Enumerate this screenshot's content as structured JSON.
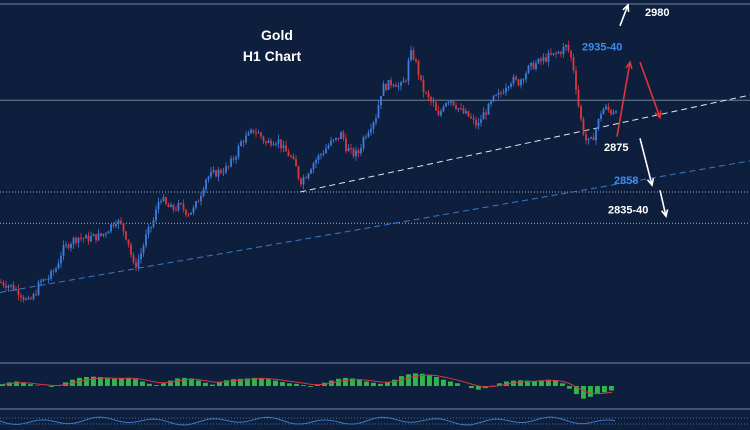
{
  "chart_data": {
    "type": "candlestick",
    "title_line1": "Gold",
    "title_line2": "H1  Chart",
    "colors": {
      "background": "#0d1f3c",
      "bull": "#3b7de0",
      "bear": "#d9383f",
      "support_level_line": "#c8d3e6",
      "trendline_white": "#dfe6f0",
      "trendline_blue": "#3a79c9",
      "arrow_up_red": "#e0343a",
      "arrow_white": "#ffffff",
      "macd_hist": "#2fb54b",
      "macd_signal": "#d9383f",
      "osc_line": "#3a79c9"
    },
    "y_range": [
      2785,
      2990
    ],
    "price_path": [
      [
        0,
        2830
      ],
      [
        10,
        2828
      ],
      [
        20,
        2824
      ],
      [
        28,
        2818
      ],
      [
        34,
        2822
      ],
      [
        40,
        2830
      ],
      [
        48,
        2832
      ],
      [
        56,
        2838
      ],
      [
        62,
        2848
      ],
      [
        70,
        2853
      ],
      [
        78,
        2856
      ],
      [
        86,
        2855
      ],
      [
        94,
        2856
      ],
      [
        102,
        2857
      ],
      [
        110,
        2862
      ],
      [
        116,
        2866
      ],
      [
        122,
        2862
      ],
      [
        128,
        2854
      ],
      [
        134,
        2838
      ],
      [
        140,
        2845
      ],
      [
        146,
        2856
      ],
      [
        154,
        2866
      ],
      [
        160,
        2880
      ],
      [
        166,
        2874
      ],
      [
        172,
        2872
      ],
      [
        180,
        2874
      ],
      [
        188,
        2870
      ],
      [
        194,
        2872
      ],
      [
        200,
        2880
      ],
      [
        206,
        2890
      ],
      [
        212,
        2892
      ],
      [
        220,
        2894
      ],
      [
        228,
        2896
      ],
      [
        236,
        2904
      ],
      [
        242,
        2912
      ],
      [
        248,
        2914
      ],
      [
        254,
        2918
      ],
      [
        260,
        2915
      ],
      [
        266,
        2910
      ],
      [
        272,
        2912
      ],
      [
        278,
        2912
      ],
      [
        284,
        2906
      ],
      [
        290,
        2903
      ],
      [
        296,
        2896
      ],
      [
        300,
        2888
      ],
      [
        306,
        2892
      ],
      [
        312,
        2898
      ],
      [
        318,
        2902
      ],
      [
        324,
        2906
      ],
      [
        330,
        2910
      ],
      [
        336,
        2912
      ],
      [
        342,
        2916
      ],
      [
        346,
        2908
      ],
      [
        352,
        2904
      ],
      [
        358,
        2904
      ],
      [
        364,
        2914
      ],
      [
        370,
        2920
      ],
      [
        376,
        2926
      ],
      [
        382,
        2942
      ],
      [
        388,
        2944
      ],
      [
        394,
        2946
      ],
      [
        400,
        2942
      ],
      [
        406,
        2948
      ],
      [
        410,
        2962
      ],
      [
        414,
        2960
      ],
      [
        418,
        2952
      ],
      [
        422,
        2942
      ],
      [
        428,
        2936
      ],
      [
        434,
        2932
      ],
      [
        438,
        2924
      ],
      [
        444,
        2934
      ],
      [
        450,
        2936
      ],
      [
        456,
        2932
      ],
      [
        462,
        2928
      ],
      [
        468,
        2926
      ],
      [
        474,
        2922
      ],
      [
        478,
        2920
      ],
      [
        482,
        2926
      ],
      [
        488,
        2930
      ],
      [
        494,
        2936
      ],
      [
        500,
        2938
      ],
      [
        506,
        2944
      ],
      [
        512,
        2947
      ],
      [
        518,
        2945
      ],
      [
        524,
        2950
      ],
      [
        530,
        2954
      ],
      [
        536,
        2956
      ],
      [
        542,
        2958
      ],
      [
        548,
        2960
      ],
      [
        554,
        2961
      ],
      [
        560,
        2963
      ],
      [
        566,
        2966
      ],
      [
        570,
        2962
      ],
      [
        574,
        2952
      ],
      [
        578,
        2934
      ],
      [
        582,
        2920
      ],
      [
        586,
        2912
      ],
      [
        590,
        2910
      ],
      [
        594,
        2915
      ],
      [
        598,
        2922
      ],
      [
        602,
        2930
      ],
      [
        606,
        2930
      ],
      [
        612,
        2928
      ],
      [
        616,
        2931
      ]
    ],
    "levels": [
      {
        "name": "resistance",
        "y": 2935
      },
      {
        "name": "support_2858",
        "y": 2882
      },
      {
        "name": "support_2835",
        "y": 2864
      }
    ],
    "trendlines": [
      {
        "name": "white_dashed",
        "from": [
          300,
          2882
        ],
        "to": [
          750,
          2938
        ]
      },
      {
        "name": "blue_dashed",
        "from": [
          0,
          2824
        ],
        "to": [
          750,
          2900
        ]
      }
    ],
    "labels": [
      {
        "name": "label-2980",
        "text": "2980",
        "x": 645,
        "y": 2986,
        "color": "white"
      },
      {
        "name": "label-2935-40",
        "text": "2935-40",
        "x": 582,
        "y": 2966,
        "color": "blue"
      },
      {
        "name": "label-2875",
        "text": "2875",
        "x": 604,
        "y": 2908,
        "color": "white"
      },
      {
        "name": "label-2858",
        "text": "2858",
        "x": 614,
        "y": 2889,
        "color": "blue"
      },
      {
        "name": "label-2835-40",
        "text": "2835-40",
        "x": 608,
        "y": 2872,
        "color": "white"
      }
    ],
    "arrows": [
      {
        "name": "arrow-up-red-1",
        "from": [
          617,
          2914
        ],
        "to": [
          630,
          2957
        ],
        "color": "red"
      },
      {
        "name": "arrow-down-red",
        "from": [
          640,
          2957
        ],
        "to": [
          660,
          2925
        ],
        "color": "red"
      },
      {
        "name": "arrow-down-white-1",
        "from": [
          640,
          2913
        ],
        "to": [
          652,
          2886
        ],
        "color": "white"
      },
      {
        "name": "arrow-down-white-2",
        "from": [
          660,
          2883
        ],
        "to": [
          666,
          2868
        ],
        "color": "white"
      },
      {
        "name": "arrow-up-white-top",
        "from": [
          620,
          2978
        ],
        "to": [
          628,
          2990
        ],
        "color": "white"
      }
    ],
    "macd": {
      "y_range": [
        -1,
        1
      ],
      "histogram": [
        0.1,
        0.2,
        0.25,
        0.2,
        0.1,
        0.02,
        0.0,
        -0.05,
        0.05,
        0.2,
        0.35,
        0.45,
        0.5,
        0.52,
        0.5,
        0.45,
        0.4,
        0.42,
        0.45,
        0.38,
        0.25,
        0.12,
        0.05,
        0.15,
        0.3,
        0.42,
        0.45,
        0.42,
        0.3,
        0.18,
        0.08,
        0.22,
        0.32,
        0.38,
        0.4,
        0.42,
        0.45,
        0.45,
        0.38,
        0.3,
        0.22,
        0.15,
        0.12,
        0.05,
        -0.05,
        0.05,
        0.18,
        0.3,
        0.4,
        0.45,
        0.42,
        0.35,
        0.25,
        0.18,
        0.12,
        0.2,
        0.35,
        0.55,
        0.65,
        0.7,
        0.68,
        0.62,
        0.5,
        0.35,
        0.25,
        0.15,
        0.0,
        -0.12,
        -0.2,
        -0.12,
        0.02,
        0.15,
        0.25,
        0.3,
        0.32,
        0.3,
        0.28,
        0.32,
        0.35,
        0.3,
        0.15,
        -0.15,
        -0.45,
        -0.7,
        -0.6,
        -0.45,
        -0.35,
        -0.25
      ]
    }
  }
}
